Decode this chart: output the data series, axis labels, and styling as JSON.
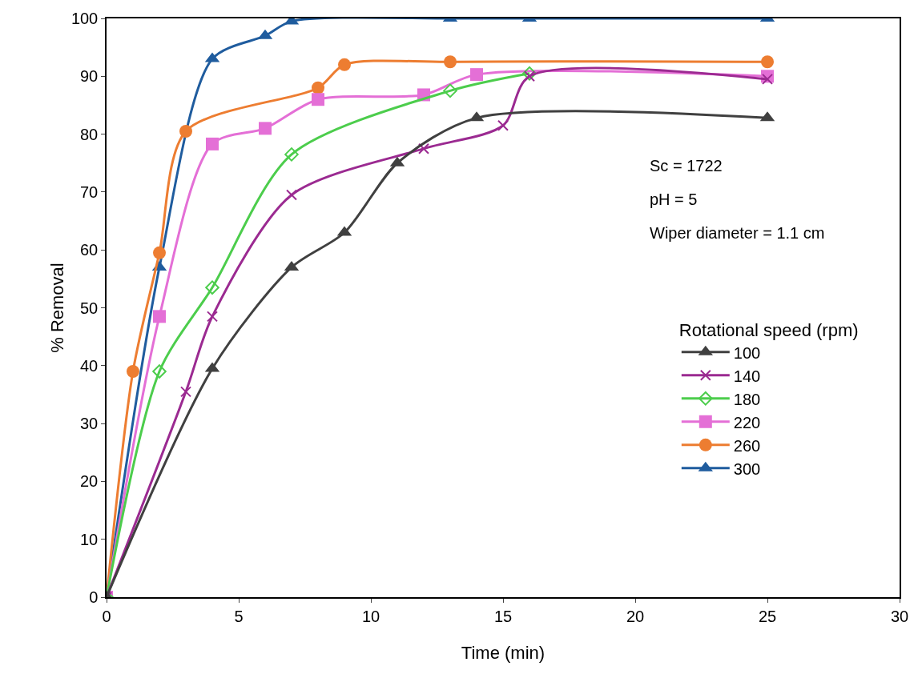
{
  "chart_data": {
    "type": "line",
    "xlabel": "Time (min)",
    "ylabel": "% Removal",
    "legend_title": "Rotational speed (rpm)",
    "xlim": [
      0,
      30
    ],
    "xticks": [
      0,
      5,
      10,
      15,
      20,
      25,
      30
    ],
    "ylim": [
      0,
      100
    ],
    "yticks": [
      0,
      10,
      20,
      30,
      40,
      50,
      60,
      70,
      80,
      90,
      100
    ],
    "grid": false,
    "legend": "right",
    "line_style": "solid",
    "annotations": [
      "Sc = 1722",
      "pH = 5",
      "Wiper diameter = 1.1 cm"
    ],
    "series": [
      {
        "name": "100",
        "color": "#404040",
        "marker": "triangle",
        "x": [
          0,
          4,
          7,
          9,
          11,
          14,
          25
        ],
        "values": [
          0,
          39.5,
          57,
          63,
          75,
          82.8,
          82.8
        ]
      },
      {
        "name": "140",
        "color": "#9b2a91",
        "marker": "cross",
        "x": [
          0,
          3,
          4,
          7,
          12,
          15,
          16,
          25
        ],
        "values": [
          0,
          35.5,
          48.5,
          69.5,
          77.5,
          81.5,
          90,
          89.5
        ]
      },
      {
        "name": "180",
        "color": "#4ccd4c",
        "marker": "diamond",
        "x": [
          0,
          2,
          4,
          7,
          13,
          16
        ],
        "values": [
          0,
          39,
          53.5,
          76.5,
          87.5,
          90.5
        ]
      },
      {
        "name": "220",
        "color": "#e46fd6",
        "marker": "square",
        "x": [
          0,
          2,
          4,
          6,
          8,
          12,
          14,
          25
        ],
        "values": [
          0,
          48.5,
          78.3,
          81,
          86,
          86.8,
          90.3,
          90
        ]
      },
      {
        "name": "260",
        "color": "#ed7d31",
        "marker": "circle",
        "x": [
          0,
          1,
          2,
          3,
          8,
          9,
          13,
          25
        ],
        "values": [
          0,
          39,
          59.5,
          80.5,
          88,
          92,
          92.5,
          92.5
        ]
      },
      {
        "name": "300",
        "color": "#1f5c9e",
        "marker": "triangle",
        "x": [
          0,
          2,
          4,
          6,
          7,
          13,
          16,
          25
        ],
        "values": [
          0,
          57,
          93,
          97,
          99.5,
          100,
          100,
          100
        ]
      }
    ]
  }
}
